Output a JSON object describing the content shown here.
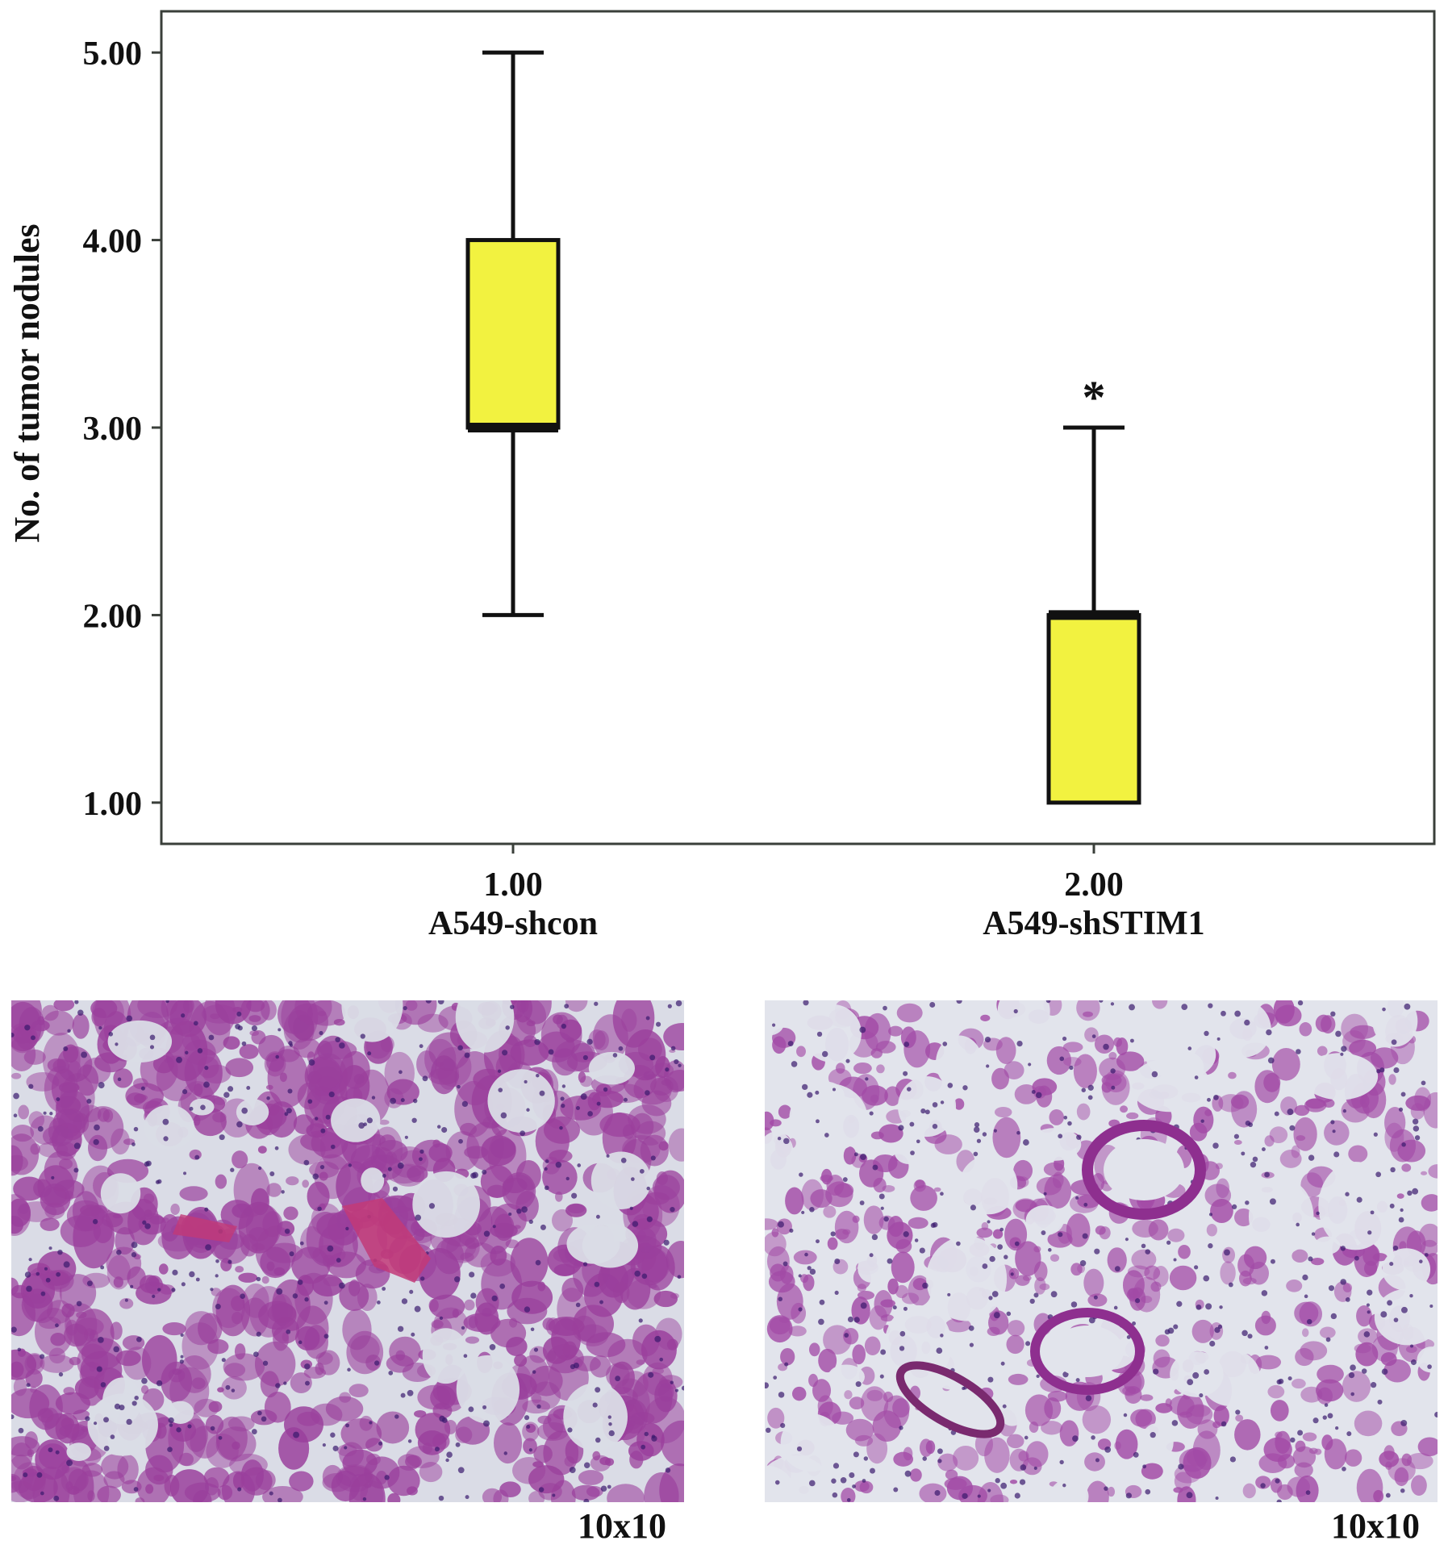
{
  "chart_data": {
    "type": "box",
    "ylabel": "No. of tumor nodules",
    "ylim": [
      0.78,
      5.22
    ],
    "yticks": [
      "1.00",
      "2.00",
      "3.00",
      "4.00",
      "5.00"
    ],
    "ytick_values": [
      1,
      2,
      3,
      4,
      5
    ],
    "grid": false,
    "box_color": "#f2f240",
    "groups": [
      {
        "x_tick": "1.00",
        "label": "A549-shcon",
        "min": 2,
        "q1": 3,
        "median": 3,
        "q3": 4,
        "max": 5,
        "annotation": ""
      },
      {
        "x_tick": "2.00",
        "label": "A549-shSTIM1",
        "min": 1,
        "q1": 1,
        "median": 2,
        "q3": 2,
        "max": 3,
        "annotation": "*"
      }
    ]
  },
  "images": [
    {
      "caption": "10x10",
      "tissue_color": "#9a3f9c",
      "background": "#dadce6"
    },
    {
      "caption": "10x10",
      "tissue_color": "#a24aa6",
      "background": "#e2e4ec"
    }
  ]
}
